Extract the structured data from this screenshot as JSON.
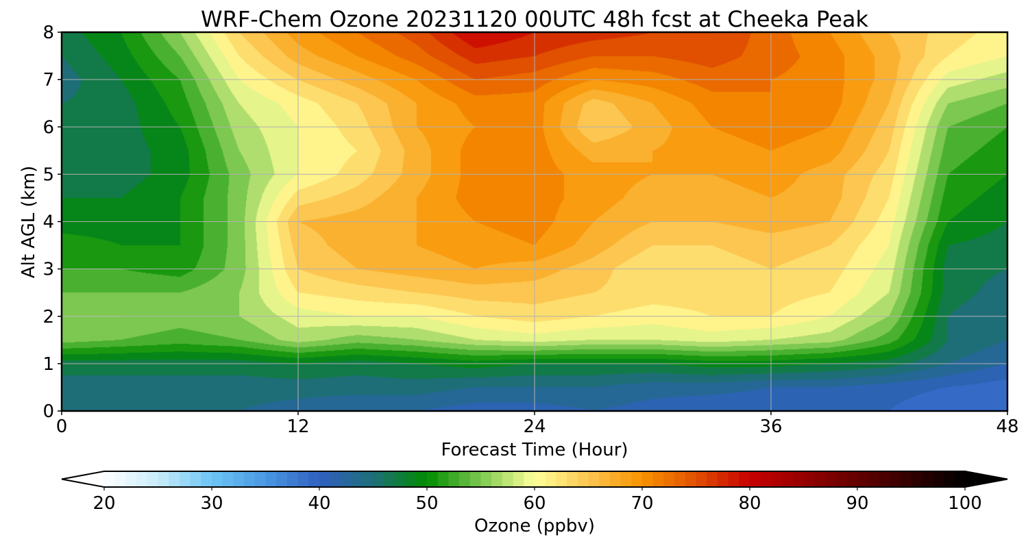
{
  "chart_data": {
    "type": "heatmap",
    "title": "WRF-Chem Ozone  20231120 00UTC 48h fcst at Cheeka Peak",
    "xlabel": "Forecast Time (Hour)",
    "ylabel": "Alt AGL (km)",
    "xlim": [
      0,
      48
    ],
    "ylim": [
      0,
      8
    ],
    "x_ticks": [
      "0",
      "12",
      "24",
      "36",
      "48"
    ],
    "x_tick_values": [
      0,
      12,
      24,
      36,
      48
    ],
    "y_ticks": [
      "0",
      "1",
      "2",
      "3",
      "4",
      "5",
      "6",
      "7",
      "8"
    ],
    "y_tick_values": [
      0,
      1,
      2,
      3,
      4,
      5,
      6,
      7,
      8
    ],
    "grid": true,
    "x": [
      0,
      3,
      6,
      9,
      12,
      15,
      18,
      21,
      24,
      27,
      30,
      33,
      36,
      39,
      42,
      45,
      48
    ],
    "y": [
      0,
      0.5,
      1,
      1.5,
      2,
      2.5,
      3,
      3.5,
      4,
      4.5,
      5,
      5.5,
      6,
      6.5,
      7,
      7.5,
      8
    ],
    "z": [
      [
        44,
        44,
        44,
        44,
        43,
        42,
        42,
        41,
        41,
        42,
        41,
        40,
        40,
        40,
        40,
        38,
        38
      ],
      [
        45,
        45,
        45,
        45,
        45,
        45,
        45,
        44,
        44,
        44,
        43,
        43,
        42,
        42,
        41,
        40,
        39
      ],
      [
        47,
        47,
        47,
        47,
        48,
        47,
        48,
        49,
        48,
        48,
        48,
        49,
        49,
        48,
        47,
        44,
        42
      ],
      [
        55,
        54,
        53,
        54,
        57,
        55,
        56,
        58,
        59,
        58,
        58,
        59,
        58,
        57,
        53,
        46,
        44
      ],
      [
        56,
        56,
        55,
        56,
        59,
        60,
        60,
        62,
        63,
        62,
        61,
        62,
        62,
        60,
        56,
        46,
        44
      ],
      [
        54,
        54,
        54,
        56,
        62,
        63,
        64,
        65,
        65,
        64,
        63,
        63,
        63,
        62,
        58,
        47,
        45
      ],
      [
        52,
        52,
        51,
        55,
        64,
        66,
        67,
        68,
        67,
        65,
        62,
        63,
        64,
        63,
        59,
        47,
        46
      ],
      [
        51,
        50,
        50,
        55,
        65,
        67,
        68,
        69,
        70,
        67,
        64,
        64,
        65,
        64,
        60,
        48,
        47
      ],
      [
        49,
        49,
        50,
        55,
        66,
        67,
        68,
        70,
        71,
        68,
        66,
        66,
        67,
        66,
        61,
        50,
        48
      ],
      [
        48,
        48,
        50,
        55,
        63,
        65,
        68,
        71,
        71,
        69,
        67,
        67,
        68,
        67,
        62,
        51,
        49
      ],
      [
        47,
        47,
        49,
        55,
        60,
        63,
        67,
        71,
        71,
        69,
        68,
        68,
        69,
        67,
        63,
        52,
        50
      ],
      [
        46,
        47,
        49,
        56,
        60,
        62,
        67,
        71,
        71,
        67,
        68,
        69,
        70,
        69,
        64,
        53,
        51
      ],
      [
        46,
        47,
        50,
        57,
        60,
        63,
        68,
        70,
        71,
        64,
        67,
        70,
        71,
        70,
        65,
        54,
        52
      ],
      [
        46,
        47,
        51,
        58,
        61,
        64,
        68,
        71,
        71,
        65,
        68,
        71,
        72,
        71,
        66,
        56,
        54
      ],
      [
        45,
        48,
        52,
        60,
        64,
        67,
        70,
        74,
        73,
        70,
        71,
        73,
        72,
        71,
        67,
        59,
        57
      ],
      [
        46,
        49,
        54,
        62,
        67,
        70,
        73,
        77,
        76,
        74,
        74,
        75,
        73,
        71,
        67,
        62,
        60
      ],
      [
        47,
        50,
        56,
        64,
        69,
        72,
        75,
        80,
        78,
        77,
        76,
        76,
        73,
        70,
        66,
        63,
        61
      ]
    ],
    "colorbar": {
      "label": "Ozone  (ppbv)",
      "min": 20,
      "max": 100,
      "extend": "both",
      "tick_labels": [
        "20",
        "30",
        "40",
        "50",
        "60",
        "70",
        "80",
        "90",
        "100"
      ],
      "tick_values": [
        20,
        30,
        40,
        50,
        60,
        70,
        80,
        90,
        100
      ],
      "color_stops": [
        {
          "v": 20,
          "c": "#ffffff"
        },
        {
          "v": 25,
          "c": "#c8ecfa"
        },
        {
          "v": 30,
          "c": "#6cc4f4"
        },
        {
          "v": 35,
          "c": "#4a98e2"
        },
        {
          "v": 40,
          "c": "#3060c0"
        },
        {
          "v": 45,
          "c": "#1e6e78"
        },
        {
          "v": 50,
          "c": "#008c00"
        },
        {
          "v": 55,
          "c": "#7cc850"
        },
        {
          "v": 60,
          "c": "#ffff9a"
        },
        {
          "v": 65,
          "c": "#fcc650"
        },
        {
          "v": 70,
          "c": "#f89200"
        },
        {
          "v": 75,
          "c": "#e05000"
        },
        {
          "v": 80,
          "c": "#c80000"
        },
        {
          "v": 90,
          "c": "#640000"
        },
        {
          "v": 100,
          "c": "#000000"
        }
      ]
    }
  }
}
